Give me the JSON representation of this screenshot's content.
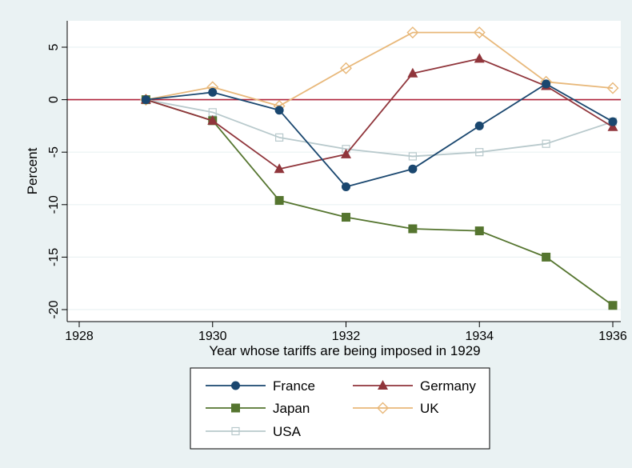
{
  "chart_data": {
    "type": "line",
    "title": "",
    "xlabel": "Year whose tariffs are being imposed in 1929",
    "ylabel": "Percent",
    "xlim": [
      1928,
      1936
    ],
    "ylim": [
      -20,
      5
    ],
    "x_ticks": [
      1928,
      1930,
      1932,
      1934,
      1936
    ],
    "y_ticks": [
      -20,
      -15,
      -10,
      -5,
      0,
      5
    ],
    "grid": "horizontal",
    "reference_line": {
      "y": 0,
      "color": "#b0243a"
    },
    "legend_position": "bottom",
    "x": [
      1929,
      1930,
      1931,
      1932,
      1933,
      1934,
      1935,
      1936
    ],
    "series": [
      {
        "name": "France",
        "color": "#1a476f",
        "marker": "circle",
        "values": [
          0,
          0.7,
          -1.0,
          -8.3,
          -6.6,
          -2.5,
          1.5,
          -2.1
        ]
      },
      {
        "name": "Germany",
        "color": "#90353b",
        "marker": "triangle",
        "values": [
          0,
          -2.0,
          -6.6,
          -5.2,
          2.5,
          3.9,
          1.3,
          -2.6
        ]
      },
      {
        "name": "Japan",
        "color": "#55752f",
        "marker": "square",
        "values": [
          0,
          -2.0,
          -9.6,
          -11.2,
          -12.3,
          -12.5,
          -15.0,
          -19.6
        ]
      },
      {
        "name": "UK",
        "color": "#e8b87a",
        "marker": "diamond-hollow",
        "values": [
          0,
          1.2,
          -0.6,
          3.0,
          6.4,
          6.4,
          1.7,
          1.1
        ]
      },
      {
        "name": "USA",
        "color": "#b8c9cc",
        "marker": "square-hollow",
        "values": [
          0,
          -1.2,
          -3.6,
          -4.7,
          -5.4,
          -5.0,
          -4.2,
          -2.1
        ]
      }
    ]
  }
}
